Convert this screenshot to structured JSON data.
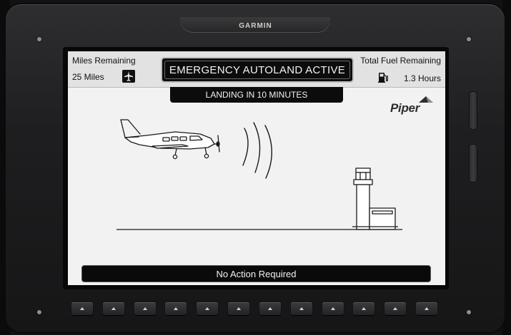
{
  "device": {
    "brand": "GARMIN"
  },
  "screen": {
    "miles": {
      "label": "Miles Remaining",
      "value": "25 Miles",
      "icon": "airplane-icon"
    },
    "fuel": {
      "label": "Total Fuel Remaining",
      "value": "1.3 Hours",
      "icon": "fuel-pump-icon"
    },
    "banner": "EMERGENCY AUTOLAND ACTIVE",
    "sub_banner": "LANDING IN 10 MINUTES",
    "logo": "Piper",
    "status": "No Action Required"
  },
  "colors": {
    "screen_bg": "#f2f2f2",
    "banner_bg": "#0c0c0c",
    "bezel": "#1e1e20"
  },
  "softkeys": [
    "",
    "",
    "",
    "",
    "",
    "",
    "",
    "",
    "",
    "",
    "",
    ""
  ]
}
